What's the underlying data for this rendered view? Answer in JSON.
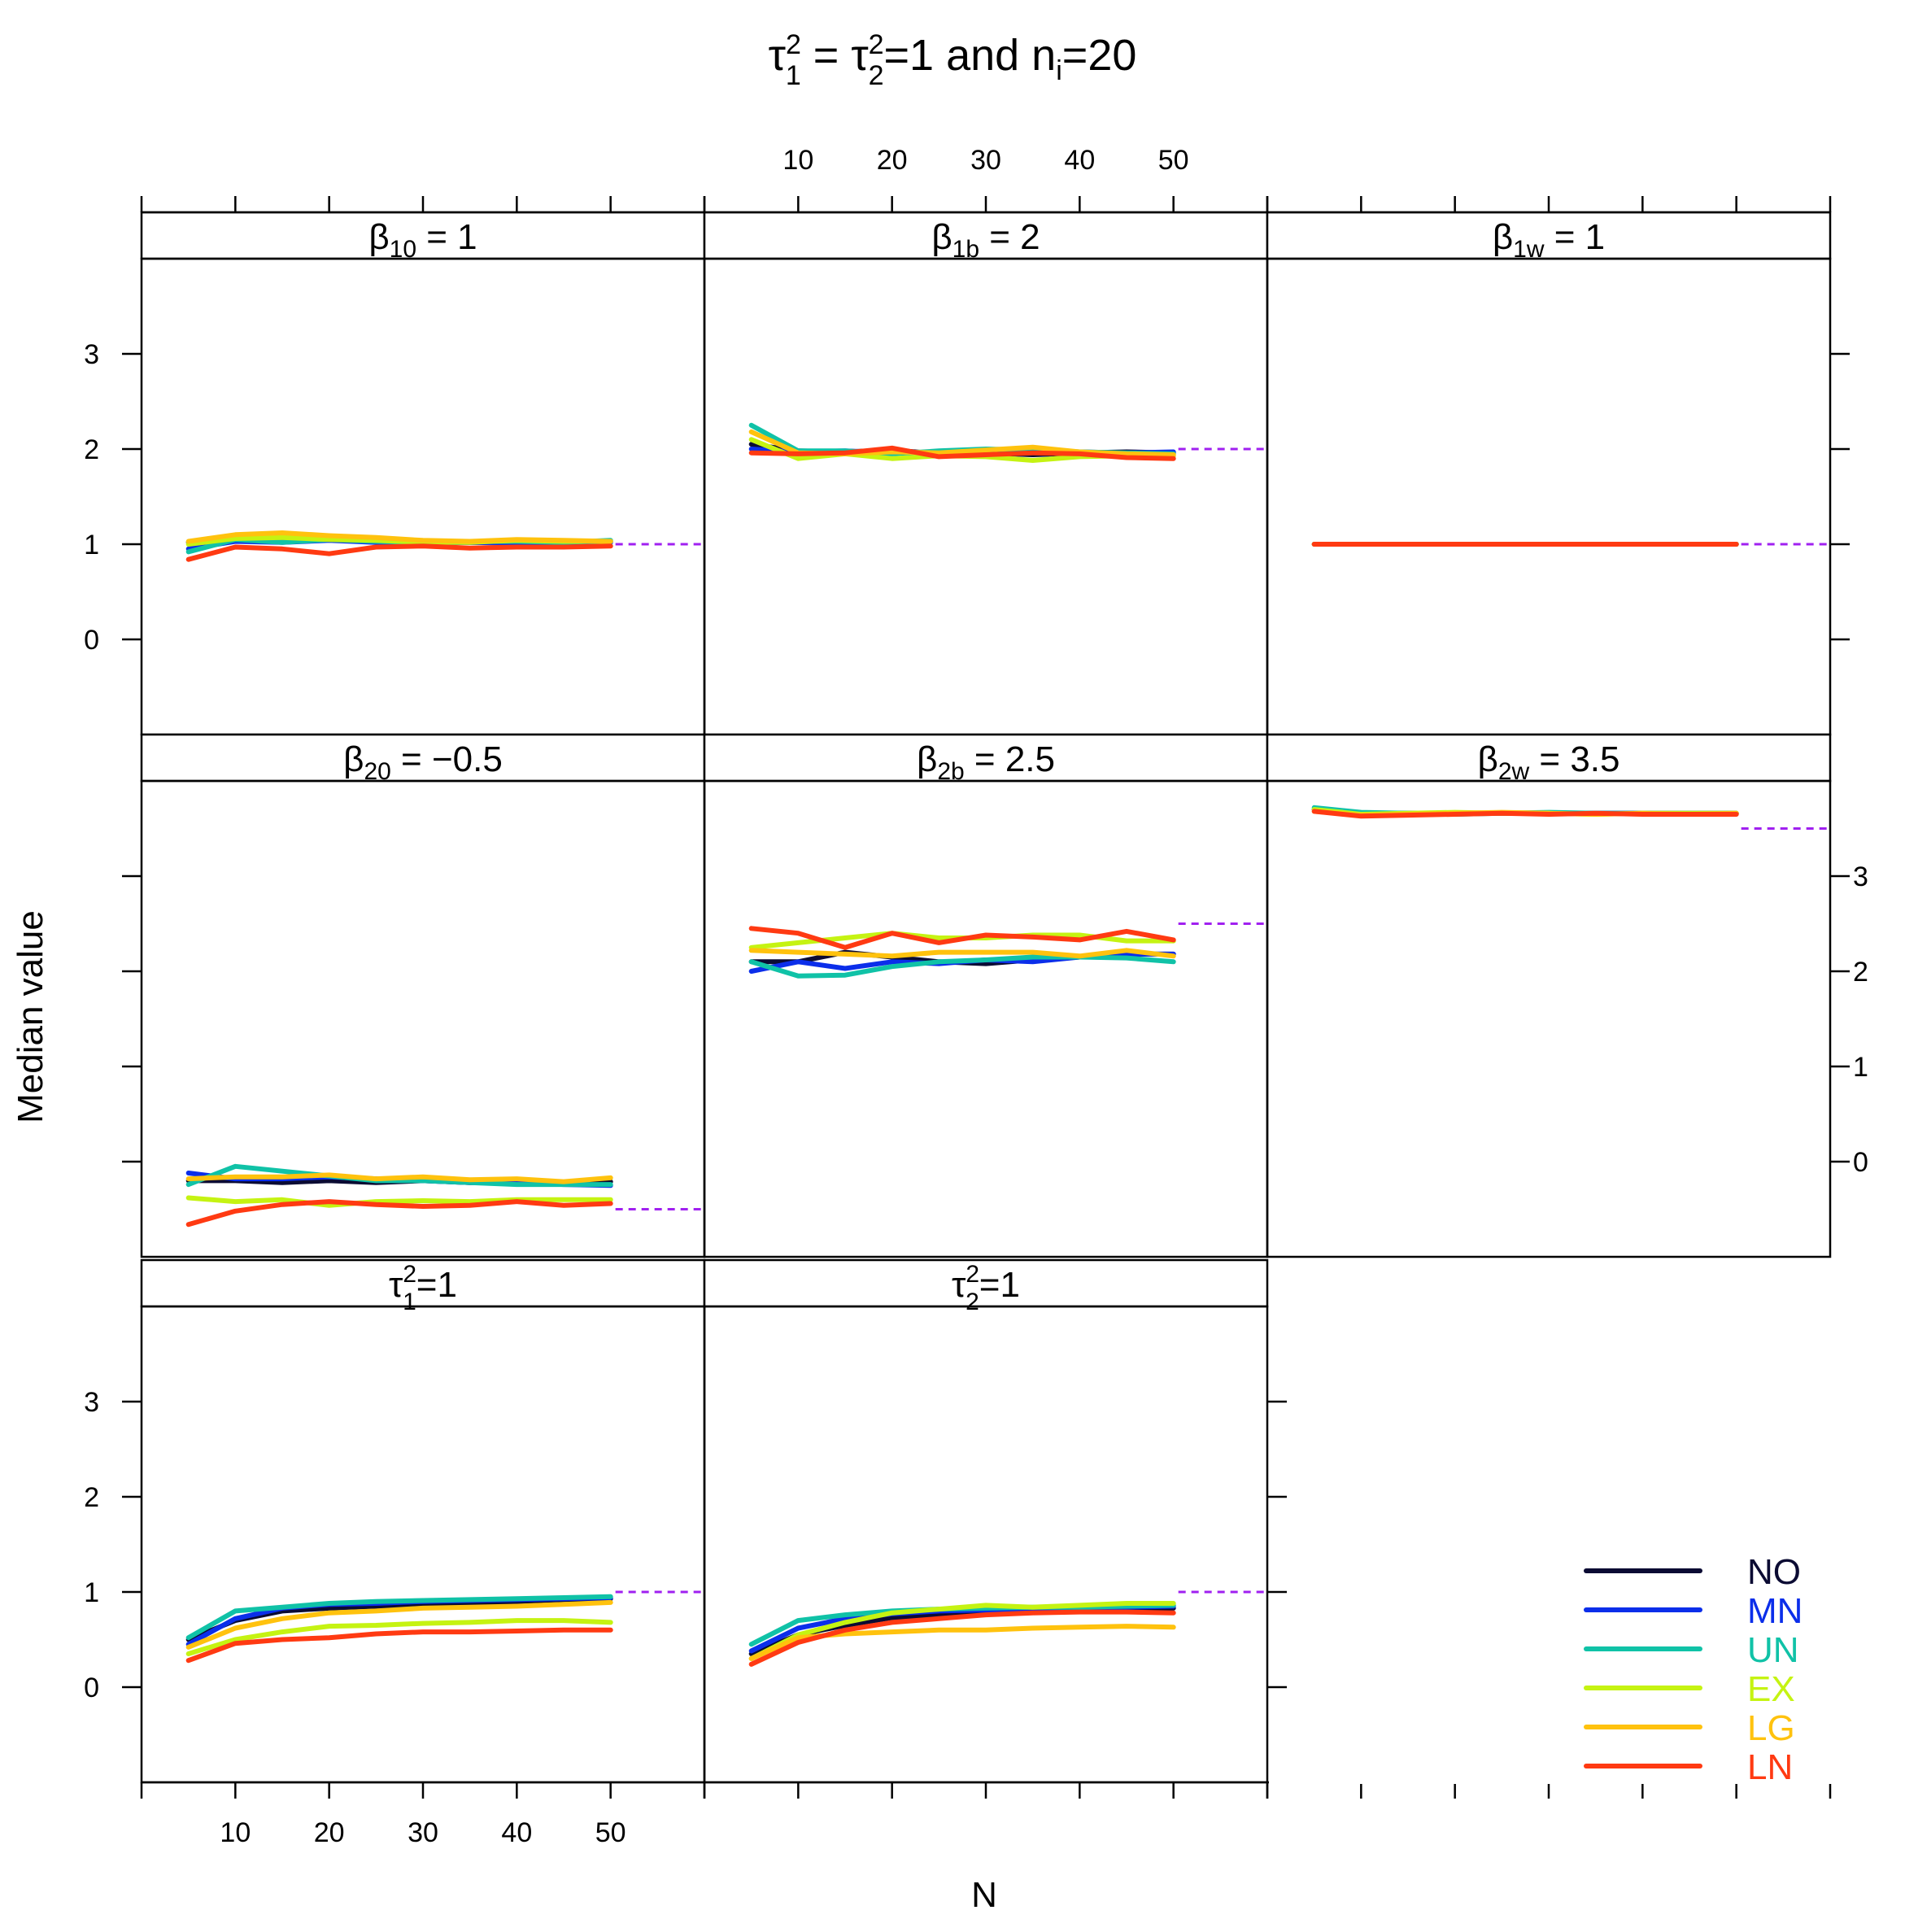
{
  "chart_data": {
    "type": "line",
    "title": {
      "tau1": "τ",
      "sup1": "2",
      "sub1": "1",
      "eq1": " = ",
      "tau2": "τ",
      "sup2": "2",
      "sub2": "2",
      "rest": "=1 and n",
      "subi": "i",
      "tail": "=20"
    },
    "xlabel": "N",
    "ylabel": "Median value",
    "x": [
      5,
      10,
      15,
      20,
      25,
      30,
      35,
      40,
      45,
      50
    ],
    "xlim": [
      0,
      60
    ],
    "ylim": [
      -1,
      4
    ],
    "x_ticks": [
      10,
      20,
      30,
      40,
      50
    ],
    "y_ticks": [
      0,
      1,
      2,
      3
    ],
    "series_names": [
      "NO",
      "MN",
      "UN",
      "EX",
      "LG",
      "LN"
    ],
    "colors": {
      "NO": "#0b0b33",
      "MN": "#0b2eea",
      "UN": "#10c2a7",
      "EX": "#c5f312",
      "LG": "#ffc20e",
      "LN": "#ff3a12",
      "reference": "#a020f0"
    },
    "legend": [
      {
        "label": "NO",
        "color": "#0b0b33"
      },
      {
        "label": "MN",
        "color": "#0b2eea"
      },
      {
        "label": "UN",
        "color": "#10c2a7"
      },
      {
        "label": "EX",
        "color": "#c5f312"
      },
      {
        "label": "LG",
        "color": "#ffc20e"
      },
      {
        "label": "LN",
        "color": "#ff3a12"
      }
    ],
    "panels": [
      {
        "id": "b10",
        "sym": "β",
        "sub": "10",
        "sup": "",
        "eq": " = 1",
        "true_value": 1,
        "series": [
          {
            "name": "NO",
            "values": [
              1.02,
              1.05,
              1.05,
              1.07,
              1.05,
              1.03,
              1.02,
              1.02,
              1.03,
              1.03
            ]
          },
          {
            "name": "MN",
            "values": [
              0.95,
              1.03,
              1.02,
              1.04,
              1.02,
              1.01,
              1.02,
              1.01,
              1.02,
              1.02
            ]
          },
          {
            "name": "UN",
            "values": [
              0.92,
              1.05,
              1.02,
              1.05,
              1.03,
              1.02,
              1.03,
              1.03,
              1.02,
              1.04
            ]
          },
          {
            "name": "EX",
            "values": [
              1.0,
              1.06,
              1.07,
              1.05,
              1.04,
              1.02,
              1.02,
              1.04,
              1.03,
              1.03
            ]
          },
          {
            "name": "LG",
            "values": [
              1.03,
              1.1,
              1.12,
              1.09,
              1.07,
              1.04,
              1.03,
              1.05,
              1.04,
              1.03
            ]
          },
          {
            "name": "LN",
            "values": [
              0.84,
              0.97,
              0.95,
              0.9,
              0.97,
              0.98,
              0.96,
              0.97,
              0.97,
              0.98
            ]
          }
        ]
      },
      {
        "id": "b1b",
        "sym": "β",
        "sub": "1b",
        "sup": "",
        "eq": " = 2",
        "true_value": 2,
        "series": [
          {
            "name": "NO",
            "values": [
              2.05,
              1.98,
              1.97,
              1.99,
              1.95,
              1.96,
              1.94,
              1.96,
              1.97,
              1.96
            ]
          },
          {
            "name": "MN",
            "values": [
              2.0,
              1.97,
              1.98,
              1.96,
              1.97,
              1.99,
              1.98,
              1.97,
              1.96,
              1.97
            ]
          },
          {
            "name": "UN",
            "values": [
              2.25,
              1.98,
              1.98,
              1.95,
              1.98,
              2.0,
              1.99,
              1.97,
              1.96,
              1.95
            ]
          },
          {
            "name": "EX",
            "values": [
              2.1,
              1.9,
              1.95,
              1.9,
              1.93,
              1.92,
              1.88,
              1.92,
              1.93,
              1.93
            ]
          },
          {
            "name": "LG",
            "values": [
              2.18,
              1.96,
              1.95,
              1.97,
              1.96,
              1.99,
              2.02,
              1.97,
              1.95,
              1.94
            ]
          },
          {
            "name": "LN",
            "values": [
              1.96,
              1.95,
              1.96,
              2.01,
              1.92,
              1.94,
              1.96,
              1.95,
              1.91,
              1.9
            ]
          }
        ]
      },
      {
        "id": "b1w",
        "sym": "β",
        "sub": "1w",
        "sup": "",
        "eq": " = 1",
        "true_value": 1,
        "series": [
          {
            "name": "NO",
            "values": [
              1.0,
              1.0,
              1.0,
              1.0,
              1.0,
              1.0,
              1.0,
              1.0,
              1.0,
              1.0
            ]
          },
          {
            "name": "MN",
            "values": [
              1.0,
              1.0,
              1.0,
              1.0,
              1.0,
              1.0,
              1.0,
              1.0,
              1.0,
              1.0
            ]
          },
          {
            "name": "UN",
            "values": [
              1.0,
              1.0,
              1.0,
              1.0,
              1.0,
              1.0,
              1.0,
              1.0,
              1.0,
              1.0
            ]
          },
          {
            "name": "EX",
            "values": [
              1.0,
              1.0,
              1.0,
              1.0,
              1.0,
              1.0,
              1.0,
              1.0,
              1.0,
              1.0
            ]
          },
          {
            "name": "LG",
            "values": [
              1.0,
              1.0,
              1.0,
              1.0,
              1.0,
              1.0,
              1.0,
              1.0,
              1.0,
              1.0
            ]
          },
          {
            "name": "LN",
            "values": [
              1.0,
              1.0,
              1.0,
              1.0,
              1.0,
              1.0,
              1.0,
              1.0,
              1.0,
              1.0
            ]
          }
        ]
      },
      {
        "id": "b20",
        "sym": "β",
        "sub": "20",
        "sup": "",
        "eq": " = −0.5",
        "true_value": -0.5,
        "series": [
          {
            "name": "NO",
            "values": [
              -0.2,
              -0.2,
              -0.22,
              -0.2,
              -0.22,
              -0.2,
              -0.22,
              -0.21,
              -0.22,
              -0.21
            ]
          },
          {
            "name": "MN",
            "values": [
              -0.12,
              -0.18,
              -0.18,
              -0.16,
              -0.18,
              -0.2,
              -0.22,
              -0.22,
              -0.24,
              -0.25
            ]
          },
          {
            "name": "UN",
            "values": [
              -0.24,
              -0.05,
              -0.1,
              -0.15,
              -0.2,
              -0.2,
              -0.22,
              -0.24,
              -0.24,
              -0.24
            ]
          },
          {
            "name": "EX",
            "values": [
              -0.38,
              -0.42,
              -0.4,
              -0.46,
              -0.42,
              -0.41,
              -0.42,
              -0.4,
              -0.4,
              -0.4
            ]
          },
          {
            "name": "LG",
            "values": [
              -0.18,
              -0.16,
              -0.16,
              -0.14,
              -0.18,
              -0.16,
              -0.19,
              -0.18,
              -0.21,
              -0.17
            ]
          },
          {
            "name": "LN",
            "values": [
              -0.66,
              -0.52,
              -0.45,
              -0.42,
              -0.45,
              -0.47,
              -0.46,
              -0.42,
              -0.46,
              -0.44
            ]
          }
        ]
      },
      {
        "id": "b2b",
        "sym": "β",
        "sub": "2b",
        "sup": "",
        "eq": " = 2.5",
        "true_value": 2.5,
        "series": [
          {
            "name": "NO",
            "values": [
              2.1,
              2.1,
              2.2,
              2.15,
              2.1,
              2.08,
              2.12,
              2.15,
              2.18,
              2.18
            ]
          },
          {
            "name": "MN",
            "values": [
              2.0,
              2.1,
              2.03,
              2.1,
              2.08,
              2.12,
              2.1,
              2.15,
              2.18,
              2.18
            ]
          },
          {
            "name": "UN",
            "values": [
              2.1,
              1.95,
              1.96,
              2.05,
              2.1,
              2.12,
              2.15,
              2.15,
              2.14,
              2.1
            ]
          },
          {
            "name": "EX",
            "values": [
              2.25,
              2.3,
              2.35,
              2.4,
              2.35,
              2.35,
              2.38,
              2.38,
              2.32,
              2.32
            ]
          },
          {
            "name": "LG",
            "values": [
              2.22,
              2.2,
              2.18,
              2.16,
              2.2,
              2.2,
              2.2,
              2.16,
              2.22,
              2.16
            ]
          },
          {
            "name": "LN",
            "values": [
              2.45,
              2.4,
              2.25,
              2.4,
              2.3,
              2.38,
              2.36,
              2.33,
              2.42,
              2.33
            ]
          }
        ]
      },
      {
        "id": "b2w",
        "sym": "β",
        "sub": "2w",
        "sup": "",
        "eq": " = 3.5",
        "true_value": 3.5,
        "series": [
          {
            "name": "NO",
            "values": [
              3.7,
              3.66,
              3.66,
              3.66,
              3.66,
              3.66,
              3.66,
              3.66,
              3.66,
              3.66
            ]
          },
          {
            "name": "MN",
            "values": [
              3.7,
              3.66,
              3.66,
              3.66,
              3.66,
              3.66,
              3.66,
              3.66,
              3.66,
              3.66
            ]
          },
          {
            "name": "UN",
            "values": [
              3.72,
              3.67,
              3.66,
              3.65,
              3.66,
              3.67,
              3.66,
              3.66,
              3.66,
              3.66
            ]
          },
          {
            "name": "EX",
            "values": [
              3.7,
              3.65,
              3.66,
              3.67,
              3.66,
              3.66,
              3.65,
              3.66,
              3.66,
              3.66
            ]
          },
          {
            "name": "LG",
            "values": [
              3.68,
              3.64,
              3.65,
              3.66,
              3.67,
              3.66,
              3.65,
              3.66,
              3.65,
              3.66
            ]
          },
          {
            "name": "LN",
            "values": [
              3.68,
              3.63,
              3.64,
              3.65,
              3.66,
              3.65,
              3.66,
              3.65,
              3.65,
              3.65
            ]
          }
        ]
      },
      {
        "id": "tau1",
        "sym": "τ",
        "sub": "1",
        "sup": "2",
        "eq": "=1",
        "true_value": 1,
        "series": [
          {
            "name": "NO",
            "values": [
              0.5,
              0.7,
              0.8,
              0.83,
              0.85,
              0.87,
              0.88,
              0.9,
              0.92,
              0.93
            ]
          },
          {
            "name": "MN",
            "values": [
              0.45,
              0.72,
              0.83,
              0.87,
              0.88,
              0.9,
              0.91,
              0.92,
              0.93,
              0.94
            ]
          },
          {
            "name": "UN",
            "values": [
              0.52,
              0.8,
              0.84,
              0.88,
              0.9,
              0.91,
              0.92,
              0.93,
              0.94,
              0.95
            ]
          },
          {
            "name": "EX",
            "values": [
              0.35,
              0.5,
              0.58,
              0.64,
              0.65,
              0.67,
              0.68,
              0.7,
              0.7,
              0.68
            ]
          },
          {
            "name": "LG",
            "values": [
              0.42,
              0.62,
              0.72,
              0.78,
              0.8,
              0.83,
              0.84,
              0.85,
              0.87,
              0.89
            ]
          },
          {
            "name": "LN",
            "values": [
              0.28,
              0.46,
              0.5,
              0.52,
              0.56,
              0.58,
              0.58,
              0.59,
              0.6,
              0.6
            ]
          }
        ]
      },
      {
        "id": "tau2",
        "sym": "τ",
        "sub": "2",
        "sup": "2",
        "eq": "=1",
        "true_value": 1,
        "series": [
          {
            "name": "NO",
            "values": [
              0.35,
              0.55,
              0.65,
              0.73,
              0.76,
              0.78,
              0.8,
              0.81,
              0.82,
              0.83
            ]
          },
          {
            "name": "MN",
            "values": [
              0.38,
              0.62,
              0.72,
              0.77,
              0.8,
              0.81,
              0.82,
              0.83,
              0.84,
              0.85
            ]
          },
          {
            "name": "UN",
            "values": [
              0.45,
              0.7,
              0.76,
              0.8,
              0.82,
              0.83,
              0.84,
              0.84,
              0.85,
              0.86
            ]
          },
          {
            "name": "EX",
            "values": [
              0.3,
              0.55,
              0.68,
              0.78,
              0.82,
              0.86,
              0.84,
              0.86,
              0.88,
              0.88
            ]
          },
          {
            "name": "LG",
            "values": [
              0.3,
              0.52,
              0.56,
              0.58,
              0.6,
              0.6,
              0.62,
              0.63,
              0.64,
              0.63
            ]
          },
          {
            "name": "LN",
            "values": [
              0.24,
              0.47,
              0.6,
              0.68,
              0.72,
              0.76,
              0.78,
              0.79,
              0.79,
              0.78
            ]
          }
        ]
      }
    ]
  }
}
